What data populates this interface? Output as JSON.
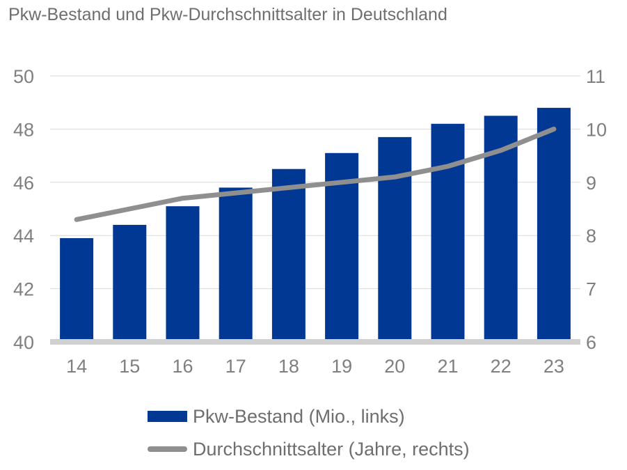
{
  "colors": {
    "bar": "#003894",
    "line": "#8f8f8f",
    "grid": "#d9d9d9",
    "axis": "#d0d0d0"
  },
  "chart_data": {
    "type": "bar",
    "title": "Pkw-Bestand und Pkw-Durchschnittsalter in Deutschland",
    "categories": [
      "14",
      "15",
      "16",
      "17",
      "18",
      "19",
      "20",
      "21",
      "22",
      "23"
    ],
    "series": [
      {
        "name": "Pkw-Bestand (Mio., links)",
        "type": "bar",
        "axis": "left",
        "values": [
          43.9,
          44.4,
          45.1,
          45.8,
          46.5,
          47.1,
          47.7,
          48.2,
          48.5,
          48.8
        ]
      },
      {
        "name": "Durchschnittsalter (Jahre, rechts)",
        "type": "line",
        "axis": "right",
        "values": [
          8.3,
          8.5,
          8.7,
          8.8,
          8.9,
          9.0,
          9.1,
          9.3,
          9.6,
          10.0
        ]
      }
    ],
    "y_left": {
      "lim": [
        40,
        50
      ],
      "ticks": [
        "40",
        "42",
        "44",
        "46",
        "48",
        "50"
      ]
    },
    "y_right": {
      "lim": [
        6,
        11
      ],
      "ticks": [
        "6",
        "7",
        "8",
        "9",
        "10",
        "11"
      ]
    },
    "grid": true,
    "legend_position": "bottom"
  }
}
